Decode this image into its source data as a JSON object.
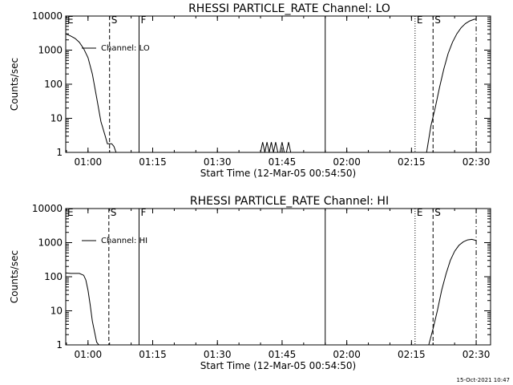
{
  "footer_timestamp": "15-Oct-2021 10:47",
  "chart_data": [
    {
      "type": "line",
      "title": "RHESSI PARTICLE_RATE Channel: LO",
      "xlabel": "Start Time (12-Mar-05 00:54:50)",
      "ylabel": "Counts/sec",
      "yscale": "log",
      "ylim": [
        1,
        10000
      ],
      "xlim": [
        "00:54:50",
        "02:33:20"
      ],
      "x_ticks": [
        "01:00",
        "01:15",
        "01:30",
        "01:45",
        "02:00",
        "02:15",
        "02:30"
      ],
      "y_ticks": [
        "1",
        "10",
        "100",
        "1000",
        "10000"
      ],
      "legend": {
        "label": "Channel: LO",
        "position": "top-left"
      },
      "markers": [
        {
          "label": "E",
          "time": "00:54:50",
          "style": "dotted"
        },
        {
          "label": "S",
          "time": "01:05:00",
          "style": "dashed"
        },
        {
          "label": "F",
          "time": "01:11:50",
          "style": "solid"
        },
        {
          "label": "",
          "time": "01:55:00",
          "style": "solid"
        },
        {
          "label": "E",
          "time": "02:15:50",
          "style": "dotted"
        },
        {
          "label": "S",
          "time": "02:20:00",
          "style": "dashed"
        },
        {
          "label": "",
          "time": "02:30:00",
          "style": "dashdot"
        }
      ],
      "series": [
        {
          "segments": [
            [
              [
                "00:54:50",
                3000
              ],
              [
                "00:56:00",
                2600
              ],
              [
                "00:57:00",
                2200
              ],
              [
                "00:58:00",
                1700
              ],
              [
                "00:59:00",
                1100
              ],
              [
                "01:00:00",
                600
              ],
              [
                "01:01:00",
                200
              ],
              [
                "01:02:00",
                40
              ],
              [
                "01:03:00",
                8
              ],
              [
                "01:04:00",
                3
              ],
              [
                "01:04:30",
                1.8
              ],
              [
                "01:05:30",
                1.8
              ],
              [
                "01:06:00",
                1.5
              ],
              [
                "01:06:30",
                1
              ]
            ],
            [
              [
                "01:40:00",
                1
              ],
              [
                "01:40:30",
                2
              ],
              [
                "01:41:00",
                1
              ],
              [
                "01:41:30",
                2
              ],
              [
                "01:42:00",
                1
              ],
              [
                "01:42:30",
                2
              ],
              [
                "01:43:00",
                1
              ],
              [
                "01:43:30",
                2
              ],
              [
                "01:44:00",
                1
              ]
            ],
            [
              [
                "01:44:30",
                1
              ],
              [
                "01:45:00",
                2
              ],
              [
                "01:45:30",
                1
              ]
            ],
            [
              [
                "01:46:00",
                1
              ],
              [
                "01:46:30",
                2
              ],
              [
                "01:47:00",
                1
              ]
            ],
            [
              [
                "02:18:30",
                1
              ],
              [
                "02:19:30",
                6
              ],
              [
                "02:20:30",
                20
              ],
              [
                "02:21:30",
                80
              ],
              [
                "02:22:30",
                280
              ],
              [
                "02:23:30",
                800
              ],
              [
                "02:24:30",
                1700
              ],
              [
                "02:25:30",
                3000
              ],
              [
                "02:26:30",
                4500
              ],
              [
                "02:27:30",
                6000
              ],
              [
                "02:28:30",
                7200
              ],
              [
                "02:29:30",
                8000
              ],
              [
                "02:30:00",
                8200
              ]
            ]
          ]
        }
      ]
    },
    {
      "type": "line",
      "title": "RHESSI PARTICLE_RATE Channel: HI",
      "xlabel": "Start Time (12-Mar-05 00:54:50)",
      "ylabel": "Counts/sec",
      "yscale": "log",
      "ylim": [
        1,
        10000
      ],
      "xlim": [
        "00:54:50",
        "02:33:20"
      ],
      "x_ticks": [
        "01:00",
        "01:15",
        "01:30",
        "01:45",
        "02:00",
        "02:15",
        "02:30"
      ],
      "y_ticks": [
        "1",
        "10",
        "100",
        "1000",
        "10000"
      ],
      "legend": {
        "label": "Channel: HI",
        "position": "top-left"
      },
      "markers": [
        {
          "label": "E",
          "time": "00:54:50",
          "style": "dotted"
        },
        {
          "label": "S",
          "time": "01:04:50",
          "style": "dashed"
        },
        {
          "label": "F",
          "time": "01:11:50",
          "style": "solid"
        },
        {
          "label": "",
          "time": "01:55:00",
          "style": "solid"
        },
        {
          "label": "E",
          "time": "02:15:50",
          "style": "dotted"
        },
        {
          "label": "S",
          "time": "02:20:00",
          "style": "dashed"
        },
        {
          "label": "",
          "time": "02:30:00",
          "style": "dashdot"
        }
      ],
      "series": [
        {
          "segments": [
            [
              [
                "00:54:50",
                130
              ],
              [
                "00:56:00",
                125
              ],
              [
                "00:57:00",
                125
              ],
              [
                "00:58:00",
                125
              ],
              [
                "00:59:00",
                110
              ],
              [
                "00:59:30",
                80
              ],
              [
                "01:00:00",
                40
              ],
              [
                "01:00:30",
                15
              ],
              [
                "01:01:00",
                5
              ],
              [
                "01:02:00",
                1.2
              ],
              [
                "01:02:30",
                1
              ]
            ],
            [
              [
                "02:19:00",
                1
              ],
              [
                "02:20:00",
                3
              ],
              [
                "02:21:00",
                10
              ],
              [
                "02:22:00",
                40
              ],
              [
                "02:23:00",
                120
              ],
              [
                "02:24:00",
                300
              ],
              [
                "02:25:00",
                560
              ],
              [
                "02:26:00",
                830
              ],
              [
                "02:27:00",
                1050
              ],
              [
                "02:28:00",
                1200
              ],
              [
                "02:29:00",
                1250
              ],
              [
                "02:30:00",
                1150
              ]
            ]
          ]
        }
      ]
    }
  ]
}
